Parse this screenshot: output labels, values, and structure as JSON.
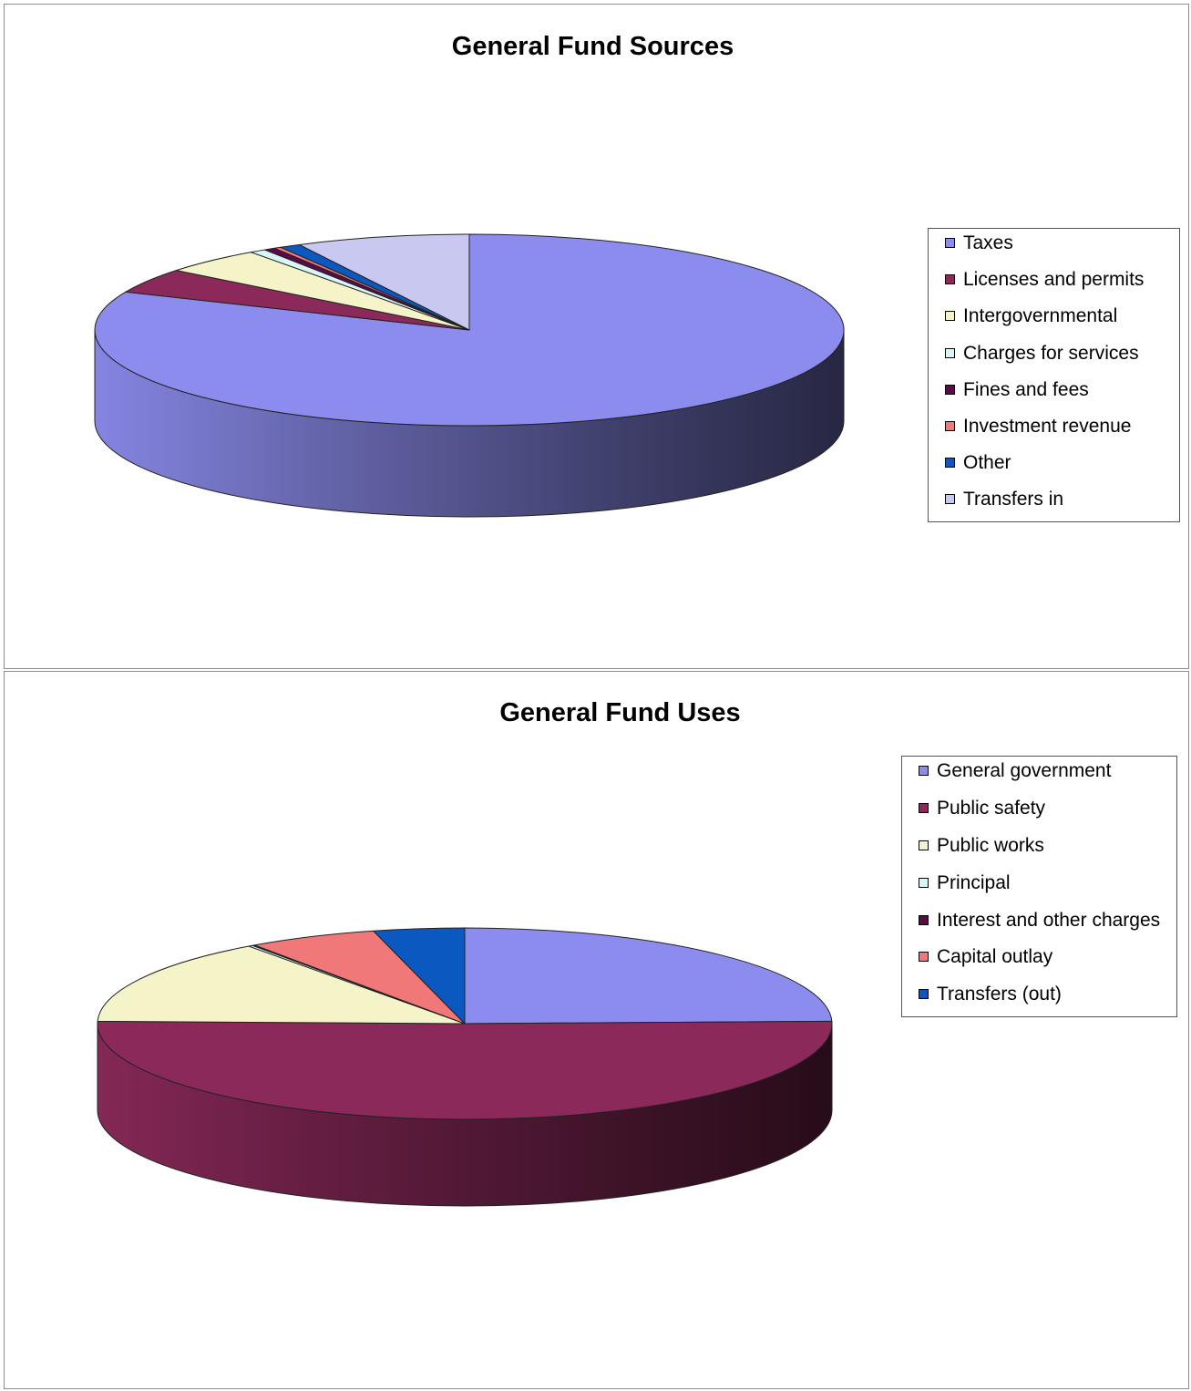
{
  "chart_data": [
    {
      "type": "pie",
      "title": "General Fund Sources",
      "start_angle_deg": 0,
      "depth": 100,
      "legend": "right",
      "series": [
        {
          "name": "Taxes",
          "value": 81.5,
          "color": "#8c8cee"
        },
        {
          "name": "Licenses and permits",
          "value": 4.2,
          "color": "#8b2a5a"
        },
        {
          "name": "Intergovernmental",
          "value": 4.4,
          "color": "#f4f4c8"
        },
        {
          "name": "Charges for services",
          "value": 0.7,
          "color": "#d8f6f8"
        },
        {
          "name": "Fines and fees",
          "value": 0.5,
          "color": "#5a0a48"
        },
        {
          "name": "Investment revenue",
          "value": 0.3,
          "color": "#f07878"
        },
        {
          "name": "Other",
          "value": 0.9,
          "color": "#0a58c0"
        },
        {
          "name": "Transfers in",
          "value": 7.5,
          "color": "#c8c8f0"
        }
      ]
    },
    {
      "type": "pie",
      "title": "General Fund Uses",
      "start_angle_deg": 0,
      "depth": 95,
      "legend": "right",
      "series": [
        {
          "name": "General government",
          "value": 24.6,
          "color": "#8c8cee"
        },
        {
          "name": "Public safety",
          "value": 50.8,
          "color": "#8b2a5a"
        },
        {
          "name": "Public works",
          "value": 14.6,
          "color": "#f4f4c8"
        },
        {
          "name": "Principal",
          "value": 0.2,
          "color": "#d8f6f8"
        },
        {
          "name": "Interest and other charges",
          "value": 0.1,
          "color": "#5a0a48"
        },
        {
          "name": "Capital outlay",
          "value": 5.7,
          "color": "#f07878"
        },
        {
          "name": "Transfers (out)",
          "value": 4.0,
          "color": "#0a58c0"
        }
      ]
    }
  ]
}
